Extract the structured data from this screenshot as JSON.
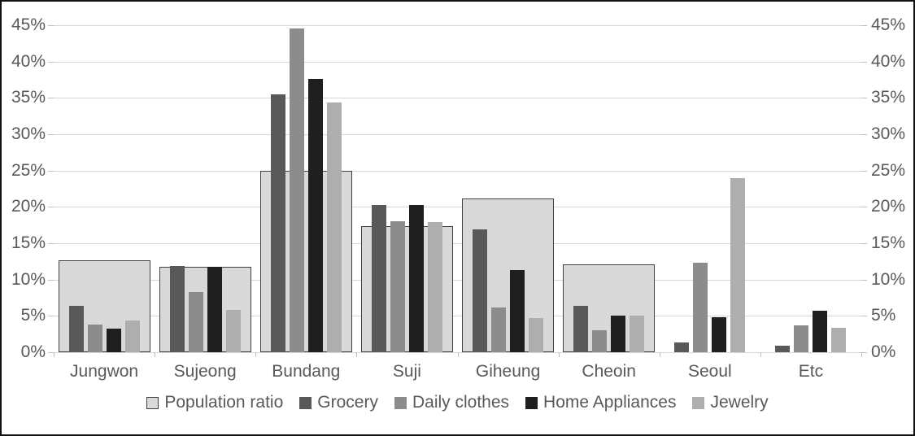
{
  "chart_data": {
    "type": "bar",
    "title": "",
    "categories": [
      "Jungwon",
      "Sujeong",
      "Bundang",
      "Suji",
      "Giheung",
      "Cheoin",
      "Seoul",
      "Etc"
    ],
    "series": [
      {
        "name": "Population ratio",
        "style": "wide",
        "color": "#d9d9d9",
        "border_color": "#404040",
        "values": [
          12.7,
          11.8,
          25.0,
          17.4,
          21.2,
          12.1,
          null,
          null
        ]
      },
      {
        "name": "Grocery",
        "style": "narrow",
        "color": "#595959",
        "values": [
          6.4,
          11.9,
          35.5,
          20.3,
          16.9,
          6.4,
          1.3,
          0.9
        ]
      },
      {
        "name": "Daily clothes",
        "style": "narrow",
        "color": "#8c8c8c",
        "values": [
          3.8,
          8.3,
          44.5,
          18.0,
          6.2,
          3.0,
          12.3,
          3.7
        ]
      },
      {
        "name": "Home Appliances",
        "style": "narrow",
        "color": "#1f1f1f",
        "values": [
          3.3,
          11.8,
          37.6,
          20.3,
          11.3,
          5.0,
          4.8,
          5.7
        ]
      },
      {
        "name": "Jewelry",
        "style": "narrow",
        "color": "#aeaeae",
        "values": [
          4.4,
          5.8,
          34.4,
          17.9,
          4.7,
          5.0,
          24.0,
          3.4
        ]
      }
    ],
    "y_axis": {
      "min": 0,
      "max": 45,
      "step": 5,
      "unit": "%",
      "tick_labels": [
        "0%",
        "5%",
        "10%",
        "15%",
        "20%",
        "25%",
        "30%",
        "35%",
        "40%",
        "45%"
      ],
      "shown_on": "both"
    },
    "grid": true,
    "legend_position": "bottom",
    "colors": {
      "gridline": "#d6d6d6",
      "axis_text": "#595959",
      "frame_border": "#111111",
      "background": "#ffffff"
    }
  }
}
